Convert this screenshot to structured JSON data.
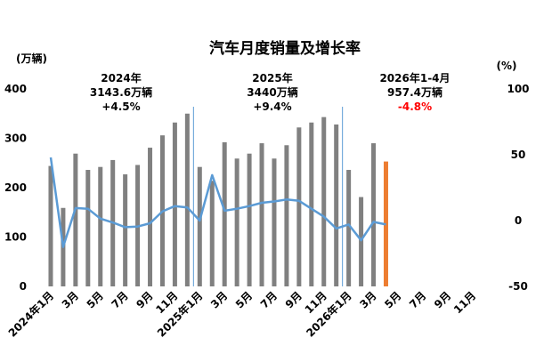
{
  "chart_data": {
    "type": "bar",
    "title": "汽车月度销量及增长率",
    "y_unit": "(万辆)",
    "y2_unit": "(%)",
    "ylim": [
      0,
      400
    ],
    "y_ticks": [
      "400",
      "300",
      "200",
      "100",
      "0"
    ],
    "y2lim": [
      -50,
      100
    ],
    "y2_ticks": [
      "100",
      "50",
      "0",
      "-50"
    ],
    "x_tick_labels": [
      "2024年1月",
      "3月",
      "5月",
      "7月",
      "9月",
      "11月",
      "2025年1月",
      "3月",
      "5月",
      "7月",
      "9月",
      "11月",
      "2026年1月",
      "3月",
      "5月",
      "7月",
      "9月",
      "11月"
    ],
    "colors": {
      "bars": "#808080",
      "bar_highlight": "#ed7d31",
      "line": "#5b9bd5",
      "divider": "#5b9bd5",
      "negative_text": "#ff0000"
    },
    "periods": [
      {
        "year": "2024年",
        "total": "3143.6万辆",
        "growth": "+4.5%"
      },
      {
        "year": "2025年",
        "total": "3440万辆",
        "growth": "+9.4%"
      },
      {
        "year": "2026年1-4月",
        "total": "957.4万辆",
        "growth": "-4.8%"
      }
    ],
    "months": [
      "2024-01",
      "2024-02",
      "2024-03",
      "2024-04",
      "2024-05",
      "2024-06",
      "2024-07",
      "2024-08",
      "2024-09",
      "2024-10",
      "2024-11",
      "2024-12",
      "2025-01",
      "2025-02",
      "2025-03",
      "2025-04",
      "2025-05",
      "2025-06",
      "2025-07",
      "2025-08",
      "2025-09",
      "2025-10",
      "2025-11",
      "2025-12",
      "2026-01",
      "2026-02",
      "2026-03",
      "2026-04",
      "2026-05",
      "2026-06",
      "2026-07",
      "2026-08",
      "2026-09",
      "2026-10",
      "2026-11",
      "2026-12"
    ],
    "series": [
      {
        "type": "bar",
        "axis": "left",
        "values": [
          244,
          159,
          269,
          236,
          242,
          256,
          227,
          246,
          281,
          306,
          332,
          350,
          242,
          214,
          292,
          259,
          269,
          290,
          259,
          286,
          322,
          332,
          343,
          328,
          236,
          181,
          290,
          253
        ]
      },
      {
        "type": "line",
        "axis": "right",
        "values": [
          48,
          -20,
          9.5,
          9,
          1.5,
          -1.5,
          -5,
          -4.5,
          -2,
          7,
          11,
          10,
          0,
          34.5,
          7.5,
          9,
          11,
          13.5,
          14.5,
          16,
          15,
          9,
          3,
          -6,
          -3,
          -15,
          -1,
          -3
        ]
      }
    ]
  }
}
